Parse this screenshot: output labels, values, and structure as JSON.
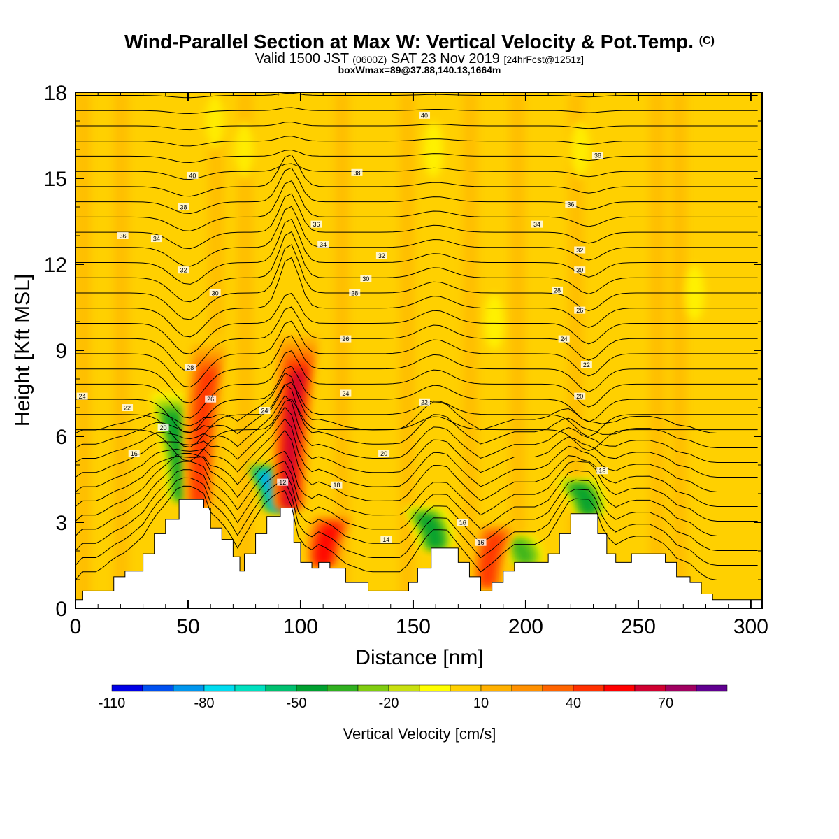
{
  "header": {
    "title": "Wind-Parallel Section at Max W: Vertical Velocity & Pot.Temp.",
    "title_mark": "(C)",
    "sub_valid": "Valid 1500 JST",
    "sub_z": "(0600Z)",
    "sub_date": "SAT 23 Nov 2019",
    "sub_fcst": "[24hrFcst@1251z]",
    "boxline": "boxWmax=89@37.88,140.13,1664m"
  },
  "chart_data": {
    "type": "heatmap",
    "title": "Wind-Parallel Section at Max W: Vertical Velocity & Pot.Temp.",
    "xlabel": "Distance [nm]",
    "ylabel": "Height [Kft MSL]",
    "xlim": [
      0,
      305
    ],
    "ylim": [
      0,
      18
    ],
    "xticks": [
      0,
      50,
      100,
      150,
      200,
      250,
      300
    ],
    "yticks": [
      0,
      3,
      6,
      9,
      12,
      15,
      18
    ],
    "grid": false,
    "colorbar": {
      "label": "Vertical Velocity [cm/s]",
      "tick_labels": [
        "-110",
        "-80",
        "-50",
        "-20",
        "10",
        "40",
        "70"
      ],
      "colors": [
        "#0000e6",
        "#0050f0",
        "#0096ee",
        "#00dcf0",
        "#00e0c0",
        "#00c070",
        "#00a030",
        "#30b020",
        "#80cc10",
        "#c8e010",
        "#ffff00",
        "#ffd000",
        "#ffb000",
        "#ff9000",
        "#ff6400",
        "#ff3000",
        "#ff0000",
        "#d00030",
        "#a00060",
        "#600090"
      ]
    },
    "terrain_kft": [
      [
        0,
        0.3
      ],
      [
        3,
        0.6
      ],
      [
        10,
        0.6
      ],
      [
        17,
        1.1
      ],
      [
        22,
        1.3
      ],
      [
        30,
        1.9
      ],
      [
        35,
        2.6
      ],
      [
        40,
        3.1
      ],
      [
        46,
        3.8
      ],
      [
        52,
        3.8
      ],
      [
        57,
        3.5
      ],
      [
        60,
        2.8
      ],
      [
        65,
        2.4
      ],
      [
        70,
        1.8
      ],
      [
        73,
        1.3
      ],
      [
        75,
        1.9
      ],
      [
        80,
        2.6
      ],
      [
        85,
        3.2
      ],
      [
        91,
        3.5
      ],
      [
        95,
        3.5
      ],
      [
        97,
        2.3
      ],
      [
        100,
        1.6
      ],
      [
        105,
        1.4
      ],
      [
        108,
        1.6
      ],
      [
        113,
        1.4
      ],
      [
        120,
        0.9
      ],
      [
        130,
        0.6
      ],
      [
        140,
        0.6
      ],
      [
        145,
        0.6
      ],
      [
        148,
        0.9
      ],
      [
        152,
        1.4
      ],
      [
        158,
        2.1
      ],
      [
        165,
        2.1
      ],
      [
        170,
        1.6
      ],
      [
        175,
        1.1
      ],
      [
        180,
        0.6
      ],
      [
        185,
        0.9
      ],
      [
        190,
        1.3
      ],
      [
        195,
        1.6
      ],
      [
        200,
        1.6
      ],
      [
        205,
        1.6
      ],
      [
        210,
        1.9
      ],
      [
        215,
        2.6
      ],
      [
        220,
        3.3
      ],
      [
        230,
        3.3
      ],
      [
        232,
        2.6
      ],
      [
        236,
        1.9
      ],
      [
        240,
        1.6
      ],
      [
        247,
        1.9
      ],
      [
        255,
        1.9
      ],
      [
        262,
        1.6
      ],
      [
        267,
        1.1
      ],
      [
        273,
        0.9
      ],
      [
        278,
        0.5
      ],
      [
        283,
        0.3
      ],
      [
        305,
        0.3
      ]
    ],
    "updrafts": [
      {
        "x": 55,
        "h": 9.5,
        "w_cms": 45
      },
      {
        "x": 95,
        "h": 9.5,
        "w_cms": 60
      },
      {
        "x": 110,
        "h": 3.2,
        "w_cms": 55
      },
      {
        "x": 183,
        "h": 3.0,
        "w_cms": 45
      }
    ],
    "downdrafts": [
      {
        "x": 48,
        "h": 7.5,
        "w_cms": -45
      },
      {
        "x": 90,
        "h": 5.0,
        "w_cms": -90
      },
      {
        "x": 160,
        "h": 3.5,
        "w_cms": -45
      },
      {
        "x": 200,
        "h": 2.5,
        "w_cms": -35
      },
      {
        "x": 228,
        "h": 4.5,
        "w_cms": -45
      }
    ],
    "isentrope_labels": [
      {
        "x": 3,
        "y": 7.4,
        "text": "24"
      },
      {
        "x": 23,
        "y": 7.0,
        "text": "22"
      },
      {
        "x": 39,
        "y": 6.3,
        "text": "20"
      },
      {
        "x": 26,
        "y": 5.4,
        "text": "16"
      },
      {
        "x": 51,
        "y": 8.4,
        "text": "28"
      },
      {
        "x": 60,
        "y": 7.3,
        "text": "26"
      },
      {
        "x": 84,
        "y": 6.9,
        "text": "24"
      },
      {
        "x": 92,
        "y": 4.4,
        "text": "12"
      },
      {
        "x": 116,
        "y": 4.3,
        "text": "18"
      },
      {
        "x": 120,
        "y": 7.5,
        "text": "24"
      },
      {
        "x": 137,
        "y": 5.4,
        "text": "20"
      },
      {
        "x": 155,
        "y": 7.2,
        "text": "22"
      },
      {
        "x": 138,
        "y": 2.4,
        "text": "14"
      },
      {
        "x": 172,
        "y": 3.0,
        "text": "16"
      },
      {
        "x": 180,
        "y": 2.3,
        "text": "16"
      },
      {
        "x": 48,
        "y": 11.8,
        "text": "32"
      },
      {
        "x": 62,
        "y": 11.0,
        "text": "30"
      },
      {
        "x": 36,
        "y": 12.9,
        "text": "34"
      },
      {
        "x": 21,
        "y": 13.0,
        "text": "36"
      },
      {
        "x": 48,
        "y": 14.0,
        "text": "38"
      },
      {
        "x": 52,
        "y": 15.1,
        "text": "40"
      },
      {
        "x": 107,
        "y": 13.4,
        "text": "36"
      },
      {
        "x": 110,
        "y": 12.7,
        "text": "34"
      },
      {
        "x": 136,
        "y": 12.3,
        "text": "32"
      },
      {
        "x": 129,
        "y": 11.5,
        "text": "30"
      },
      {
        "x": 124,
        "y": 11.0,
        "text": "28"
      },
      {
        "x": 120,
        "y": 9.4,
        "text": "26"
      },
      {
        "x": 125,
        "y": 15.2,
        "text": "38"
      },
      {
        "x": 155,
        "y": 17.2,
        "text": "40"
      },
      {
        "x": 232,
        "y": 15.8,
        "text": "38"
      },
      {
        "x": 220,
        "y": 14.1,
        "text": "36"
      },
      {
        "x": 205,
        "y": 13.4,
        "text": "34"
      },
      {
        "x": 224,
        "y": 12.5,
        "text": "32"
      },
      {
        "x": 224,
        "y": 11.8,
        "text": "30"
      },
      {
        "x": 214,
        "y": 11.1,
        "text": "28"
      },
      {
        "x": 224,
        "y": 10.4,
        "text": "26"
      },
      {
        "x": 217,
        "y": 9.4,
        "text": "24"
      },
      {
        "x": 227,
        "y": 8.5,
        "text": "22"
      },
      {
        "x": 224,
        "y": 7.4,
        "text": "20"
      },
      {
        "x": 234,
        "y": 4.8,
        "text": "18"
      }
    ]
  }
}
